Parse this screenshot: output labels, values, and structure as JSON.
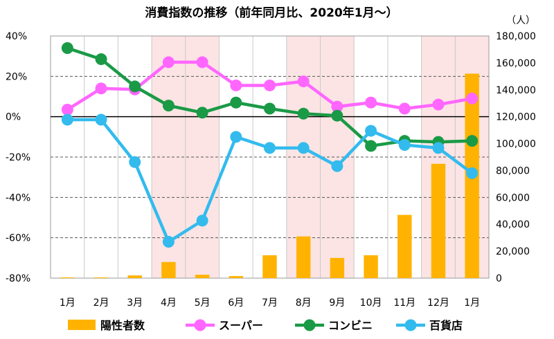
{
  "chart_data": {
    "type": "line",
    "title": "消費指数の推移（前年同月比、2020年1月〜）",
    "y2_unit_label": "（人）",
    "categories": [
      "1月",
      "2月",
      "3月",
      "4月",
      "5月",
      "6月",
      "7月",
      "8月",
      "9月",
      "10月",
      "11月",
      "12月",
      "1月"
    ],
    "y_left": {
      "ylim": [
        -80,
        40
      ],
      "ticks": [
        "40%",
        "20%",
        "0%",
        "-20%",
        "-40%",
        "-60%",
        "-80%"
      ]
    },
    "y_right": {
      "ylim": [
        0,
        180000
      ],
      "ticks": [
        "180,000",
        "160,000",
        "140,000",
        "120,000",
        "100,000",
        "80,000",
        "60,000",
        "40,000",
        "20,000",
        "0"
      ]
    },
    "shaded_months_index": [
      3,
      4,
      7,
      8,
      11,
      12
    ],
    "series": [
      {
        "name": "陽性者数",
        "kind": "bar",
        "axis": "right",
        "color": "#FFB300",
        "values": [
          0,
          0,
          2000,
          12000,
          2500,
          1500,
          17000,
          31000,
          15000,
          17000,
          47000,
          85000,
          152000
        ]
      },
      {
        "name": "スーパー",
        "kind": "line",
        "axis": "left",
        "color": "#FF66FF",
        "values": [
          3.5,
          14,
          13.5,
          27,
          27,
          15.5,
          15.5,
          17.5,
          5,
          7,
          4,
          6,
          9
        ]
      },
      {
        "name": "コンビニ",
        "kind": "line",
        "axis": "left",
        "color": "#1A9A46",
        "values": [
          34,
          28.5,
          15,
          5.5,
          2,
          7,
          4,
          1.5,
          0.5,
          -14.5,
          -12,
          -12.5,
          -12
        ]
      },
      {
        "name": "百貨店",
        "kind": "line",
        "axis": "left",
        "color": "#33BBEE",
        "values": [
          -1.5,
          -1.5,
          -22.5,
          -62,
          -51.5,
          -10,
          -15.5,
          -15.5,
          -24.5,
          -7,
          -14,
          -15.5,
          -28
        ]
      }
    ],
    "legend_position": "bottom",
    "grid": "dashed-horizontal"
  }
}
